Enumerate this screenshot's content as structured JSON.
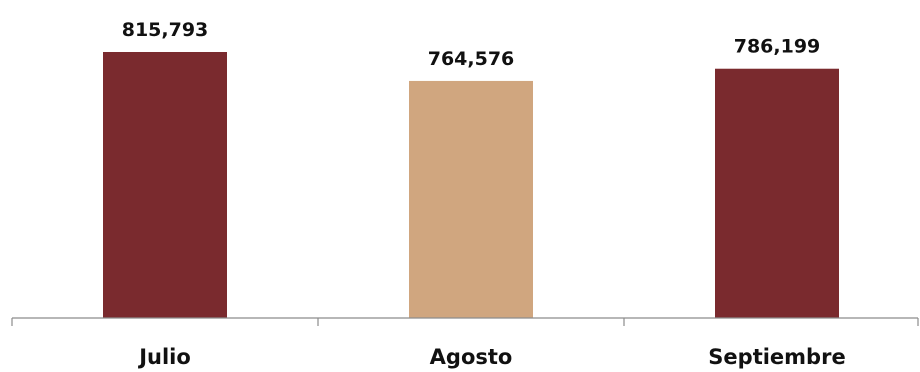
{
  "chart_data": {
    "type": "bar",
    "categories": [
      "Julio",
      "Agosto",
      "Septiembre"
    ],
    "values": [
      815793,
      764576,
      786199
    ],
    "value_labels": [
      "815,793",
      "764,576",
      "786,199"
    ],
    "bar_colors": [
      "#7a2a2e",
      "#d0a67f",
      "#7a2a2e"
    ],
    "title": "",
    "xlabel": "",
    "ylabel": "",
    "grid": false,
    "legend": "none"
  }
}
